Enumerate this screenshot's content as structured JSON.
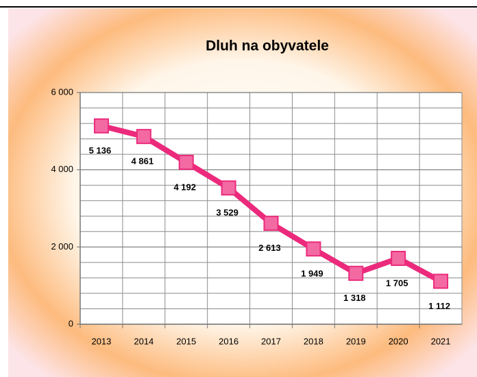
{
  "chart_data": {
    "type": "line",
    "title": "Dluh na obyvatele",
    "categories": [
      "2013",
      "2014",
      "2015",
      "2016",
      "2017",
      "2018",
      "2019",
      "2020",
      "2021"
    ],
    "values": [
      5136,
      4861,
      4192,
      3529,
      2613,
      1949,
      1318,
      1705,
      1112
    ],
    "value_labels": [
      "5 136",
      "4 861",
      "4 192",
      "3 529",
      "2 613",
      "1 949",
      "1 318",
      "1 705",
      "1 112"
    ],
    "color": "#ec2a7c",
    "ylim": [
      0,
      6000
    ],
    "yticks": [
      0,
      {
        "value": 2000,
        "label": "2 000"
      },
      {
        "value": 4000,
        "label": "4 000"
      },
      {
        "value": 6000,
        "label": "6 000"
      }
    ],
    "yminor": [
      400,
      800,
      1200,
      1600,
      2400,
      2800,
      3200,
      3600,
      4400,
      4800,
      5200,
      5600
    ],
    "grid": true
  }
}
